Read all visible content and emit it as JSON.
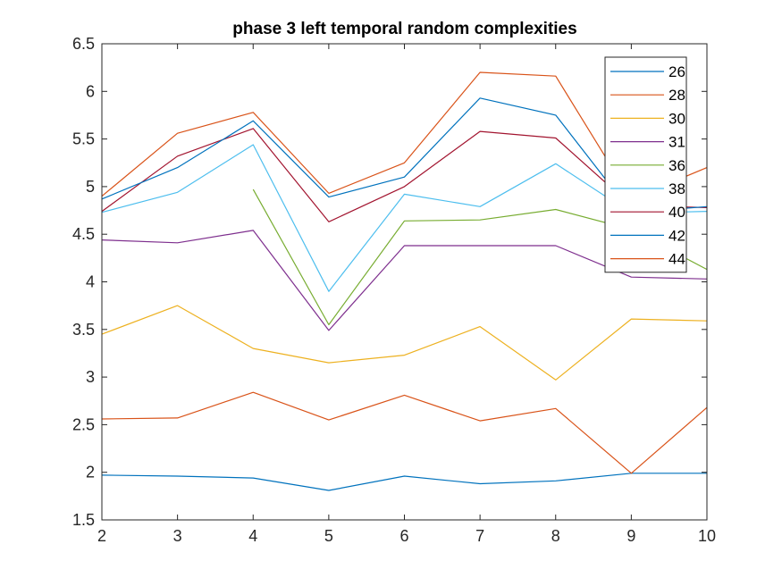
{
  "chart_data": {
    "type": "line",
    "title": "phase 3 left temporal random complexities",
    "xlabel": "",
    "ylabel": "",
    "x": [
      2,
      3,
      4,
      5,
      6,
      7,
      8,
      9,
      10
    ],
    "xlim": [
      2,
      10
    ],
    "ylim": [
      1.5,
      6.5
    ],
    "xticks": [
      "2",
      "3",
      "4",
      "5",
      "6",
      "7",
      "8",
      "9",
      "10"
    ],
    "yticks": [
      "1.5",
      "2",
      "2.5",
      "3",
      "3.5",
      "4",
      "4.5",
      "5",
      "5.5",
      "6",
      "6.5"
    ],
    "grid": false,
    "legend_position": "top-right",
    "series": [
      {
        "name": "26",
        "color": "#0072BD",
        "values": [
          1.97,
          1.96,
          1.94,
          1.81,
          1.96,
          1.88,
          1.91,
          1.99,
          1.99
        ]
      },
      {
        "name": "28",
        "color": "#D95319",
        "values": [
          2.56,
          2.57,
          2.84,
          2.55,
          2.81,
          2.54,
          2.67,
          1.99,
          2.68
        ]
      },
      {
        "name": "30",
        "color": "#EDB120",
        "values": [
          3.45,
          3.75,
          3.3,
          3.15,
          3.23,
          3.53,
          2.97,
          3.61,
          3.59
        ]
      },
      {
        "name": "31",
        "color": "#7E2F8E",
        "values": [
          4.44,
          4.41,
          4.54,
          3.49,
          4.38,
          4.38,
          4.38,
          4.05,
          4.03
        ]
      },
      {
        "name": "36",
        "color": "#77AC30",
        "values": [
          null,
          null,
          4.97,
          3.55,
          4.64,
          4.65,
          4.76,
          4.55,
          4.13
        ]
      },
      {
        "name": "38",
        "color": "#4DBEEE",
        "values": [
          4.73,
          4.94,
          5.44,
          3.9,
          4.92,
          4.79,
          5.24,
          4.72,
          4.74
        ]
      },
      {
        "name": "40",
        "color": "#A2142F",
        "values": [
          4.74,
          5.32,
          5.61,
          4.63,
          5.0,
          5.58,
          5.51,
          4.8,
          4.78
        ]
      },
      {
        "name": "42",
        "color": "#0072BD",
        "values": [
          4.87,
          5.2,
          5.69,
          4.89,
          5.1,
          5.93,
          5.75,
          4.73,
          4.79
        ]
      },
      {
        "name": "44",
        "color": "#D95319",
        "values": [
          4.9,
          5.56,
          5.78,
          4.93,
          5.25,
          6.2,
          6.16,
          4.87,
          5.2
        ]
      }
    ]
  }
}
